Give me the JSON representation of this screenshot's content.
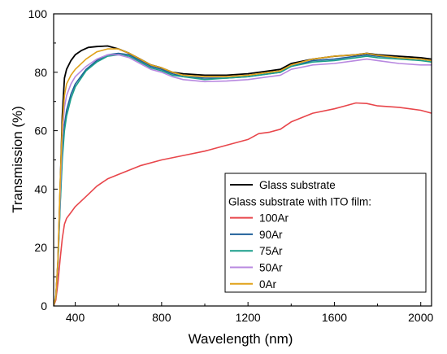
{
  "chart_data": {
    "type": "line",
    "xlabel": "Wavelength (nm)",
    "ylabel": "Transmission (%)",
    "xlim": [
      300,
      2050
    ],
    "ylim": [
      0,
      100
    ],
    "x_ticks": [
      400,
      800,
      1200,
      1600,
      2000
    ],
    "y_ticks": [
      0,
      20,
      40,
      60,
      80,
      100
    ],
    "grid": false,
    "legend": {
      "placement": "bottom-right",
      "header": "Glass substrate with ITO film:"
    },
    "series": [
      {
        "name": "Glass substrate",
        "color": "#000000",
        "x": [
          300,
          310,
          320,
          330,
          340,
          350,
          360,
          380,
          400,
          430,
          460,
          500,
          550,
          600,
          650,
          700,
          750,
          800,
          850,
          900,
          1000,
          1100,
          1200,
          1300,
          1350,
          1400,
          1500,
          1600,
          1700,
          1750,
          1800,
          1900,
          2000,
          2050
        ],
        "y": [
          0,
          3,
          15,
          40,
          65,
          78,
          81,
          84,
          86,
          87.5,
          88.5,
          88.8,
          89,
          88,
          86.5,
          84.5,
          82.5,
          81.5,
          80,
          79.5,
          79,
          79,
          79.5,
          80.5,
          81,
          83,
          84.5,
          85.5,
          86,
          86.5,
          86,
          85.5,
          85,
          84.5
        ]
      },
      {
        "name": "100Ar",
        "color": "#e8464b",
        "x": [
          300,
          310,
          320,
          330,
          340,
          350,
          360,
          380,
          400,
          450,
          500,
          550,
          600,
          700,
          800,
          900,
          1000,
          1100,
          1200,
          1250,
          1300,
          1350,
          1400,
          1500,
          1600,
          1650,
          1700,
          1750,
          1800,
          1900,
          2000,
          2050
        ],
        "y": [
          0,
          2,
          8,
          16,
          23,
          28,
          30,
          32,
          34,
          37.5,
          41,
          43.5,
          45,
          48,
          50,
          51.5,
          53,
          55,
          57,
          59,
          59.5,
          60.5,
          63,
          66,
          67.5,
          68.5,
          69.5,
          69.3,
          68.5,
          68,
          67,
          66
        ]
      },
      {
        "name": "90Ar",
        "color": "#1f5f99",
        "x": [
          300,
          310,
          320,
          330,
          340,
          350,
          360,
          380,
          400,
          450,
          500,
          550,
          600,
          650,
          700,
          750,
          800,
          850,
          900,
          1000,
          1100,
          1200,
          1300,
          1350,
          1400,
          1500,
          1600,
          1700,
          1750,
          1800,
          1900,
          2000,
          2050
        ],
        "y": [
          0,
          3,
          15,
          35,
          52,
          62,
          67,
          72.5,
          76,
          81,
          84,
          86,
          86.5,
          86,
          84,
          82,
          81,
          79.5,
          78.5,
          78,
          78,
          78.5,
          79.5,
          80,
          82,
          84,
          84.5,
          85.5,
          86,
          85.5,
          85,
          84.5,
          84
        ]
      },
      {
        "name": "75Ar",
        "color": "#1a9e8a",
        "x": [
          300,
          310,
          320,
          330,
          340,
          350,
          360,
          380,
          400,
          450,
          500,
          550,
          600,
          650,
          700,
          750,
          800,
          850,
          900,
          1000,
          1100,
          1200,
          1300,
          1350,
          1400,
          1500,
          1600,
          1700,
          1750,
          1800,
          1900,
          2000,
          2050
        ],
        "y": [
          0,
          3,
          14,
          34,
          50,
          60,
          65,
          71,
          75,
          80.5,
          83.5,
          85.5,
          86,
          85.5,
          83.5,
          81.5,
          80.5,
          79,
          78.5,
          77.5,
          78,
          78.5,
          79.5,
          80,
          82,
          83.5,
          84,
          85,
          85.5,
          85,
          84.5,
          84,
          83.5
        ]
      },
      {
        "name": "50Ar",
        "color": "#b888e0",
        "x": [
          300,
          310,
          320,
          330,
          340,
          350,
          360,
          380,
          400,
          450,
          500,
          550,
          600,
          650,
          700,
          750,
          800,
          850,
          900,
          1000,
          1100,
          1200,
          1300,
          1350,
          1400,
          1500,
          1600,
          1700,
          1750,
          1800,
          1900,
          2000,
          2050
        ],
        "y": [
          0,
          3,
          15,
          38,
          58,
          68,
          72,
          76,
          78.5,
          82,
          84.5,
          86,
          86,
          85,
          83,
          81,
          80,
          78.5,
          77.5,
          76.8,
          77,
          77.5,
          78.5,
          79,
          81,
          82.5,
          83,
          84,
          84.5,
          84,
          83,
          82.5,
          82.5
        ]
      },
      {
        "name": "0Ar",
        "color": "#e0a21a",
        "x": [
          300,
          310,
          320,
          330,
          340,
          350,
          360,
          380,
          400,
          450,
          500,
          550,
          600,
          650,
          700,
          750,
          800,
          850,
          900,
          1000,
          1100,
          1200,
          1300,
          1350,
          1400,
          1500,
          1600,
          1700,
          1750,
          1800,
          1900,
          2000,
          2050
        ],
        "y": [
          0,
          3,
          16,
          42,
          62,
          72,
          76,
          79,
          81,
          84.5,
          87,
          88,
          88,
          86.5,
          84.5,
          82.5,
          81.5,
          80,
          79,
          78.5,
          78.5,
          79,
          80,
          80.5,
          82.5,
          84.5,
          85.5,
          86,
          86.5,
          85.8,
          85,
          84.5,
          84
        ]
      }
    ]
  }
}
